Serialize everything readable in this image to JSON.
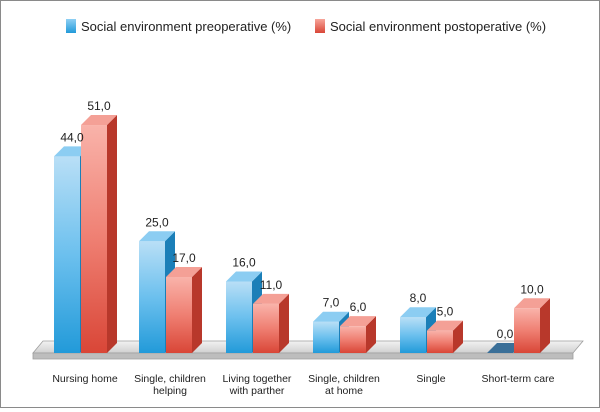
{
  "chart_data": {
    "type": "bar",
    "title": "",
    "xlabel": "",
    "ylabel": "",
    "ylim": [
      0,
      55
    ],
    "grid": false,
    "legend_position": "top",
    "categories": [
      [
        "Nursing home"
      ],
      [
        "Single, children",
        "helping"
      ],
      [
        "Living together",
        "with parther"
      ],
      [
        "Single, children",
        "at home"
      ],
      [
        "Single"
      ],
      [
        "Short-term care"
      ]
    ],
    "series": [
      {
        "name": "Social environment preoperative (%)",
        "values": [
          44.0,
          25.0,
          16.0,
          7.0,
          8.0,
          0.0
        ],
        "labels": [
          "44,0",
          "25,0",
          "16,0",
          "7,0",
          "8,0",
          "0,0"
        ],
        "color": "#3aa6e0"
      },
      {
        "name": "Social environment postoperative (%)",
        "values": [
          51.0,
          17.0,
          11.0,
          6.0,
          5.0,
          10.0
        ],
        "labels": [
          "51,0",
          "17,0",
          "11,0",
          "6,0",
          "5,0",
          "10,0"
        ],
        "color": "#e2574c"
      }
    ]
  }
}
